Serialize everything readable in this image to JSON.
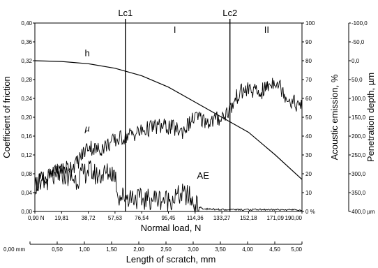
{
  "chart_data": {
    "type": "line",
    "title": "",
    "xlabel": "Normal load, N",
    "xlabel2": "Length of scratch, mm",
    "ylabel": "Coefficient of friction",
    "ylabel2": "Acoustic emission, %",
    "ylabel3": "Penetration depth, µm",
    "xlim": [
      0.9,
      190.0
    ],
    "ylim": [
      0,
      0.4
    ],
    "ylim2": [
      0,
      100
    ],
    "ylim3": [
      -100,
      400
    ],
    "grid": false,
    "x_ticks": [
      "0,90 N",
      "19,81",
      "38,72",
      "57,63",
      "76,54",
      "95,45",
      "114,36",
      "133,27",
      "152,18",
      "171,09",
      "190,00"
    ],
    "x2_ticks": [
      "0,00 mm",
      "0,50",
      "1,00",
      "1,50",
      "2,00",
      "2,50",
      "3,00",
      "3,50",
      "4,00",
      "4,50",
      "5,00"
    ],
    "y_ticks": [
      "0,00",
      "0,04",
      "0,08",
      "0,12",
      "0,16",
      "0,20",
      "0,24",
      "0,28",
      "0,32",
      "0,36",
      "0,40"
    ],
    "y2_ticks": [
      "0 %",
      "10",
      "20",
      "30",
      "40",
      "50",
      "60",
      "70",
      "80",
      "90",
      "100"
    ],
    "y3_ticks": [
      "-100,0",
      "-50,0",
      "0,0",
      "50,0",
      "100,0",
      "150,0",
      "200,0",
      "250,0",
      "300,0",
      "350,0",
      "400,0 µm"
    ],
    "vlines": [
      {
        "label": "Lc1",
        "x": 65.0
      },
      {
        "label": "Lc2",
        "x": 139.0
      }
    ],
    "region_labels": [
      {
        "label": "I",
        "x": 100
      },
      {
        "label": "II",
        "x": 165
      }
    ],
    "annotations": [
      {
        "label": "h",
        "x": 38,
        "y": 0.33
      },
      {
        "label": "µ",
        "x": 38,
        "y": 0.17
      },
      {
        "label": "AE",
        "x": 120,
        "y": 0.07
      }
    ],
    "series": [
      {
        "label": "h",
        "axis": "y3",
        "x": [
          0.9,
          19.81,
          38.72,
          57.63,
          76.54,
          95.45,
          114.36,
          133.27,
          152.18,
          171.09,
          190.0
        ],
        "values": [
          0,
          2,
          8,
          20,
          40,
          70,
          110,
          150,
          190,
          250,
          315
        ]
      },
      {
        "label": "µ",
        "axis": "y",
        "x": [
          0.9,
          10,
          19.81,
          30,
          38.72,
          45,
          57.63,
          65,
          76.54,
          85,
          95.45,
          105,
          114.36,
          125,
          133.27,
          140,
          145,
          152.18,
          160,
          171.09,
          180,
          190.0
        ],
        "values": [
          0.06,
          0.07,
          0.09,
          0.1,
          0.14,
          0.13,
          0.15,
          0.16,
          0.17,
          0.18,
          0.18,
          0.17,
          0.2,
          0.19,
          0.2,
          0.22,
          0.25,
          0.26,
          0.25,
          0.28,
          0.24,
          0.22
        ]
      },
      {
        "label": "AE",
        "axis": "y2",
        "x": [
          0.9,
          10,
          19.81,
          30,
          38.72,
          45,
          55,
          57.63,
          60,
          70,
          76.54,
          85,
          95.45,
          105,
          110,
          114.36,
          120,
          133.27,
          152.18,
          171.09,
          190.0
        ],
        "values": [
          14,
          17,
          20,
          17,
          22,
          19,
          21,
          20,
          8,
          8,
          6,
          7,
          6,
          9,
          8,
          3,
          1,
          0.5,
          0.5,
          0.5,
          0.3
        ]
      }
    ]
  }
}
